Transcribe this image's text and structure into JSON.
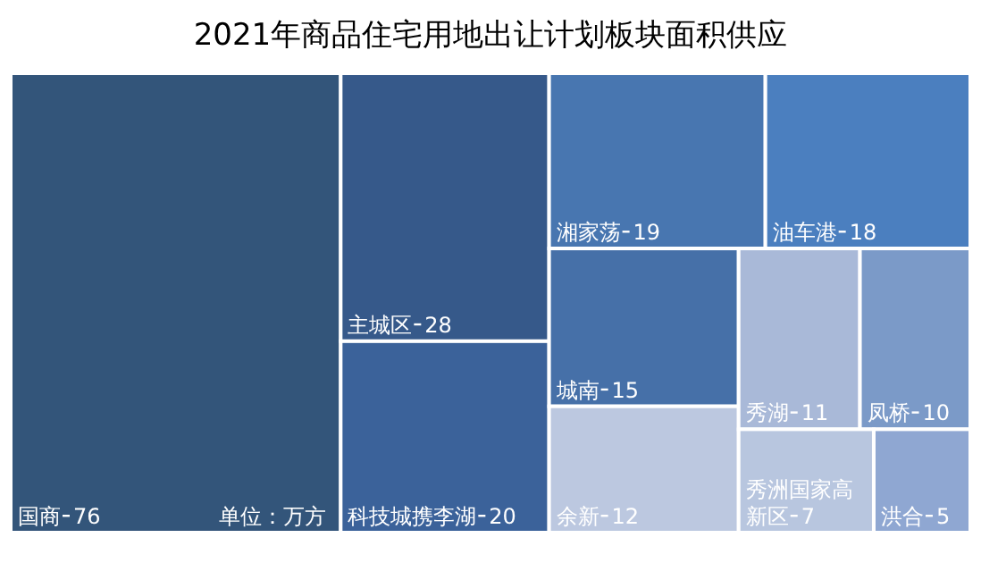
{
  "chart_data": {
    "type": "other",
    "title": "2021年商品住宅用地出让计划板块面积供应",
    "categories": [
      "国商",
      "主城区",
      "科技城携李湖",
      "湘家荡",
      "油车港",
      "城南",
      "余新",
      "秀湖",
      "凤桥",
      "秀洲国家高新区",
      "洪合"
    ],
    "data_labels": true,
    "values": [
      76,
      28,
      20,
      19,
      18,
      15,
      12,
      11,
      10,
      7,
      5
    ],
    "colors": [
      "#33557a",
      "#36598a",
      "#3b629a",
      "#4876b0",
      "#4b7fbf",
      "#4670a8",
      "#bcc8e0",
      "#a9b9d8",
      "#7b9ac8",
      "#b8c6df",
      "#8fa7d2"
    ],
    "annotations": [
      "单位：万方"
    ]
  }
}
